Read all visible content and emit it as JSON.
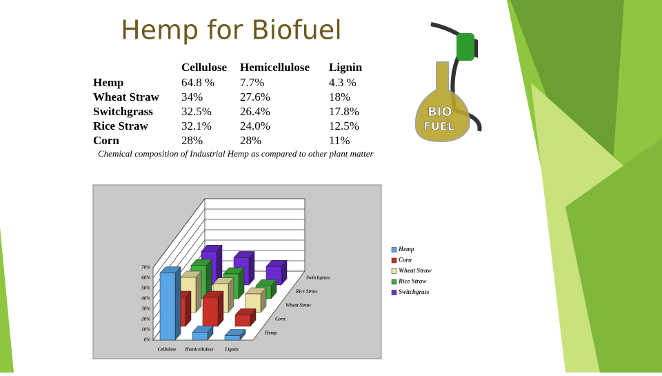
{
  "title": "Hemp for Biofuel",
  "illustration_label": [
    "BIO",
    "FUEL"
  ],
  "table": {
    "columns": [
      "Cellulose",
      "Hemicellulose",
      "Lignin"
    ],
    "rows": [
      {
        "name": "Hemp",
        "cells": [
          "64.8 %",
          "7.7%",
          "4.3 %"
        ]
      },
      {
        "name": "Wheat Straw",
        "cells": [
          "34%",
          "27.6%",
          "18%"
        ]
      },
      {
        "name": "Switchgrass",
        "cells": [
          "32.5%",
          "26.4%",
          "17.8%"
        ]
      },
      {
        "name": "Rice Straw",
        "cells": [
          "32.1%",
          "24.0%",
          "12.5%"
        ]
      },
      {
        "name": "Corn",
        "cells": [
          "28%",
          "28%",
          "11%"
        ]
      }
    ],
    "caption": "Chemical composition of Industrial Hemp as compared to other plant matter"
  },
  "chart_data": {
    "type": "bar",
    "categories": [
      "Cellulose",
      "Hemicellulose",
      "Lignin"
    ],
    "series": [
      {
        "name": "Hemp",
        "color": "#5aa5e6",
        "values": [
          64.8,
          7.7,
          4.3
        ]
      },
      {
        "name": "Corn",
        "color": "#c8302a",
        "values": [
          28,
          28,
          11
        ]
      },
      {
        "name": "Wheat Straw",
        "color": "#ece3a2",
        "values": [
          34,
          27.6,
          18
        ]
      },
      {
        "name": "Rice Straw",
        "color": "#3fae3f",
        "values": [
          32.1,
          24.0,
          12.5
        ]
      },
      {
        "name": "Switchgrass",
        "color": "#6a2bd0",
        "values": [
          32.5,
          26.4,
          17.8
        ]
      }
    ],
    "ylim": [
      0,
      70
    ],
    "yticks": [
      {
        "value": 0,
        "label": "0%"
      },
      {
        "value": 10,
        "label": "10%"
      },
      {
        "value": 20,
        "label": "20%"
      },
      {
        "value": 30,
        "label": "30%"
      },
      {
        "value": 40,
        "label": "40%"
      },
      {
        "value": 50,
        "label": "50%"
      },
      {
        "value": 60,
        "label": "60%"
      },
      {
        "value": 70,
        "label": "70%"
      }
    ],
    "grid": true
  }
}
